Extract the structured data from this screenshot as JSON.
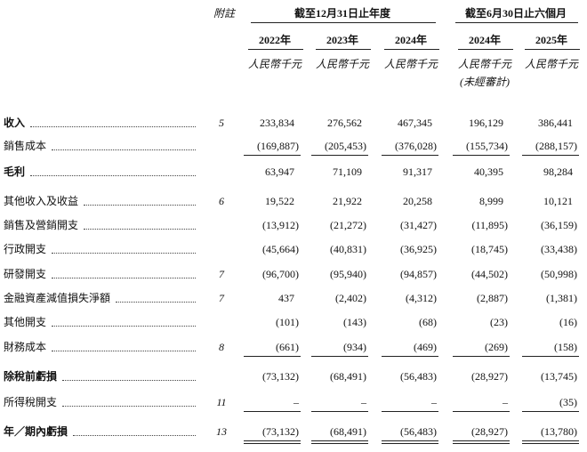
{
  "header": {
    "note_label": "附註",
    "groups": [
      "截至12月31日止年度",
      "截至6月30日止六個月"
    ],
    "columns": [
      {
        "year": "2022年",
        "unit": "人民幣千元"
      },
      {
        "year": "2023年",
        "unit": "人民幣千元"
      },
      {
        "year": "2024年",
        "unit": "人民幣千元"
      },
      {
        "year": "2024年",
        "unit": "人民幣千元",
        "remark": "(未經審計)"
      },
      {
        "year": "2025年",
        "unit": "人民幣千元"
      }
    ]
  },
  "table": {
    "rows": [
      {
        "label": "收入",
        "note": "5",
        "values": [
          "233,834",
          "276,562",
          "467,345",
          "196,129",
          "386,441"
        ]
      },
      {
        "label": "銷售成本",
        "values": [
          "(169,887)",
          "(205,453)",
          "(376,028)",
          "(155,734)",
          "(288,157)"
        ]
      },
      {
        "label": "毛利",
        "values": [
          "63,947",
          "71,109",
          "91,317",
          "40,395",
          "98,284"
        ]
      },
      {
        "label": "其他收入及收益",
        "note": "6",
        "values": [
          "19,522",
          "21,922",
          "20,258",
          "8,999",
          "10,121"
        ]
      },
      {
        "label": "銷售及營銷開支",
        "values": [
          "(13,912)",
          "(21,272)",
          "(31,427)",
          "(11,895)",
          "(36,159)"
        ]
      },
      {
        "label": "行政開支",
        "values": [
          "(45,664)",
          "(40,831)",
          "(36,925)",
          "(18,745)",
          "(33,438)"
        ]
      },
      {
        "label": "研發開支",
        "note": "7",
        "values": [
          "(96,700)",
          "(95,940)",
          "(94,857)",
          "(44,502)",
          "(50,998)"
        ]
      },
      {
        "label": "金融資產減值損失淨額",
        "note": "7",
        "values": [
          "437",
          "(2,402)",
          "(4,312)",
          "(2,887)",
          "(1,381)"
        ]
      },
      {
        "label": "其他開支",
        "values": [
          "(101)",
          "(143)",
          "(68)",
          "(23)",
          "(16)"
        ]
      },
      {
        "label": "財務成本",
        "note": "8",
        "values": [
          "(661)",
          "(934)",
          "(469)",
          "(269)",
          "(158)"
        ]
      },
      {
        "label": "除稅前虧損",
        "values": [
          "(73,132)",
          "(68,491)",
          "(56,483)",
          "(28,927)",
          "(13,745)"
        ]
      },
      {
        "label": "所得稅開支",
        "note": "11",
        "values": [
          "–",
          "–",
          "–",
          "–",
          "(35)"
        ]
      },
      {
        "label": "年／期內虧損",
        "note": "13",
        "values": [
          "(73,132)",
          "(68,491)",
          "(56,483)",
          "(28,927)",
          "(13,780)"
        ]
      }
    ]
  }
}
